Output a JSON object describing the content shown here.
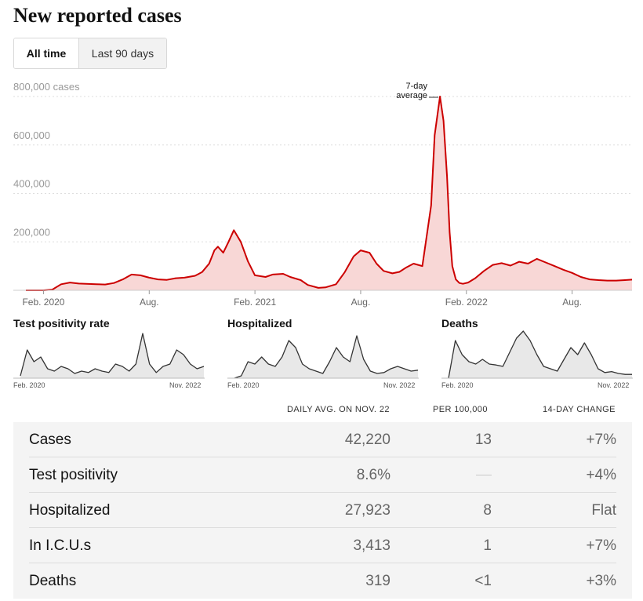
{
  "title": "New reported cases",
  "toggle": {
    "all_time": "All time",
    "last_90": "Last 90 days",
    "selected": "All time"
  },
  "colors": {
    "line": "#cc0000",
    "fill": "#f8d7d6",
    "small_line": "#333333",
    "small_fill": "#e8e8e8"
  },
  "chart_data": [
    {
      "type": "area",
      "x_unit": "months since Jan 2020",
      "y_ticks": [
        200000,
        400000,
        600000,
        800000
      ],
      "y_tick_labels": [
        "200,000",
        "400,000",
        "600,000",
        "800,000 cases"
      ],
      "ylim": [
        0,
        800000
      ],
      "x_ticks": [
        1,
        7,
        13,
        19,
        25,
        31
      ],
      "x_tick_labels": [
        "Feb. 2020",
        "Aug.",
        "Feb. 2021",
        "Aug.",
        "Feb. 2022",
        "Aug."
      ],
      "annotation": "7-day average",
      "annotation_lines": [
        "7-day",
        "average"
      ],
      "grid": true,
      "x": [
        0,
        1,
        1.5,
        2,
        2.5,
        3,
        4,
        4.5,
        5,
        5.5,
        6,
        6.5,
        7,
        7.5,
        8,
        8.5,
        9,
        9.6,
        10,
        10.4,
        10.7,
        10.9,
        11.2,
        11.5,
        11.8,
        12.2,
        12.6,
        13,
        13.6,
        14,
        14.6,
        15,
        15.6,
        16,
        16.6,
        17,
        17.6,
        18.1,
        18.6,
        19,
        19.5,
        19.9,
        20.3,
        20.8,
        21.2,
        21.6,
        22,
        22.5,
        23,
        23.2,
        23.5,
        23.7,
        23.9,
        24.05,
        24.2,
        24.4,
        24.6,
        24.8,
        25.1,
        25.5,
        26,
        26.5,
        27,
        27.5,
        28,
        28.5,
        29,
        29.5,
        30,
        30.5,
        31,
        31.5,
        32,
        32.5,
        33,
        33.5,
        34,
        34.4
      ],
      "y": [
        0,
        0,
        3000,
        25000,
        32000,
        28000,
        25000,
        24000,
        30000,
        45000,
        65000,
        62000,
        52000,
        45000,
        43000,
        50000,
        52000,
        60000,
        75000,
        110000,
        165000,
        180000,
        155000,
        200000,
        248000,
        200000,
        120000,
        62000,
        55000,
        65000,
        68000,
        55000,
        42000,
        22000,
        10000,
        12000,
        25000,
        75000,
        140000,
        165000,
        155000,
        110000,
        80000,
        70000,
        76000,
        95000,
        110000,
        100000,
        350000,
        640000,
        800000,
        700000,
        470000,
        240000,
        100000,
        45000,
        30000,
        27000,
        32000,
        50000,
        80000,
        105000,
        112000,
        102000,
        118000,
        110000,
        130000,
        115000,
        100000,
        85000,
        72000,
        55000,
        45000,
        42000,
        40000,
        40000,
        42000,
        44000
      ]
    },
    {
      "type": "area",
      "title": "Test positivity rate",
      "x_tick_labels": [
        "Feb. 2020",
        "Nov. 2022"
      ],
      "y": [
        0.05,
        0.6,
        0.35,
        0.45,
        0.2,
        0.15,
        0.25,
        0.2,
        0.1,
        0.15,
        0.12,
        0.2,
        0.15,
        0.12,
        0.3,
        0.25,
        0.15,
        0.3,
        0.95,
        0.3,
        0.12,
        0.25,
        0.3,
        0.6,
        0.5,
        0.3,
        0.2,
        0.25
      ]
    },
    {
      "type": "area",
      "title": "Hospitalized",
      "x_tick_labels": [
        "Feb. 2020",
        "Nov. 2022"
      ],
      "y": [
        0,
        0.05,
        0.35,
        0.3,
        0.45,
        0.3,
        0.25,
        0.45,
        0.8,
        0.65,
        0.3,
        0.2,
        0.15,
        0.1,
        0.35,
        0.65,
        0.45,
        0.35,
        0.9,
        0.4,
        0.15,
        0.1,
        0.12,
        0.2,
        0.25,
        0.2,
        0.15,
        0.17
      ]
    },
    {
      "type": "area",
      "title": "Deaths",
      "x_tick_labels": [
        "Feb. 2020",
        "Nov. 2022"
      ],
      "y": [
        0,
        0.8,
        0.5,
        0.35,
        0.3,
        0.4,
        0.3,
        0.28,
        0.25,
        0.55,
        0.85,
        1.0,
        0.8,
        0.5,
        0.25,
        0.2,
        0.15,
        0.4,
        0.65,
        0.5,
        0.75,
        0.5,
        0.2,
        0.12,
        0.14,
        0.1,
        0.08,
        0.08
      ]
    }
  ],
  "small_charts": [
    {
      "title": "Test positivity rate",
      "start": "Feb. 2020",
      "end": "Nov. 2022"
    },
    {
      "title": "Hospitalized",
      "start": "Feb. 2020",
      "end": "Nov. 2022"
    },
    {
      "title": "Deaths",
      "start": "Feb. 2020",
      "end": "Nov. 2022"
    }
  ],
  "table": {
    "headers": {
      "daily": "DAILY AVG. ON NOV. 22",
      "per": "PER 100,000",
      "change": "14-DAY CHANGE"
    },
    "rows": [
      {
        "label": "Cases",
        "daily": "42,220",
        "per": "13",
        "change": "+7%"
      },
      {
        "label": "Test positivity",
        "daily": "8.6%",
        "per": "",
        "change": "+4%"
      },
      {
        "label": "Hospitalized",
        "daily": "27,923",
        "per": "8",
        "change": "Flat"
      },
      {
        "label": "In I.C.U.s",
        "daily": "3,413",
        "per": "1",
        "change": "+7%"
      },
      {
        "label": "Deaths",
        "daily": "319",
        "per": "<1",
        "change": "+3%"
      }
    ]
  }
}
